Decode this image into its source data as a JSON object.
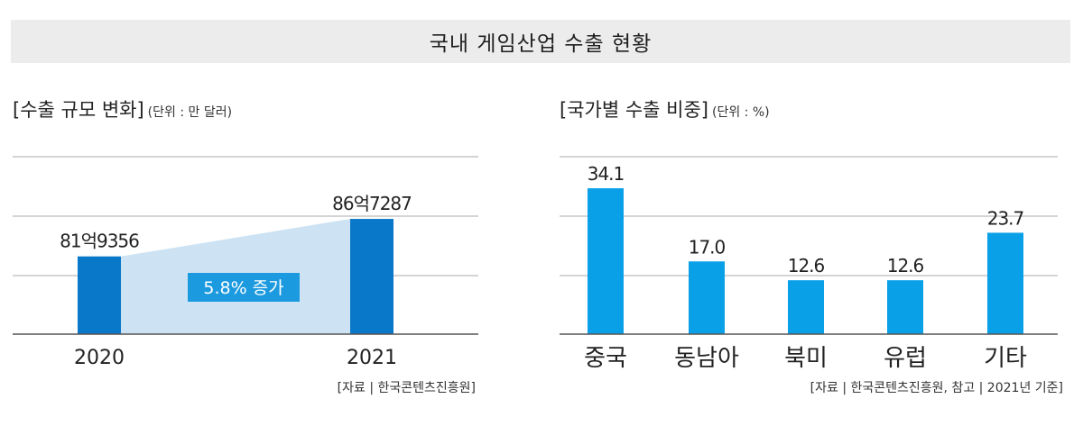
{
  "title": "국내 게임산업 수출 현황",
  "charts": {
    "left": {
      "subtitle": "[수출 규모 변화]",
      "unit": "(단위 : 만 달러)",
      "source": "[자료 | 한국콘텐츠진흥원]",
      "growth_label": "5.8% 증가"
    },
    "right": {
      "subtitle": "[국가별 수출 비중]",
      "unit": "(단위 : %)",
      "source": "[자료 | 한국콘텐츠진흥원, 참고 | 2021년 기준]"
    }
  },
  "chart_data": [
    {
      "type": "bar",
      "title": "[수출 규모 변화]",
      "unit": "(단위 : 만 달러)",
      "categories": [
        "2020",
        "2021"
      ],
      "values": [
        819356,
        867287
      ],
      "value_labels": [
        "81억9356",
        "86억7287"
      ],
      "annotation": "5.8% 증가",
      "colors": {
        "bar": "#0a78c8",
        "band": "#cde3f3",
        "annotation_bg": "#1c9ae0"
      }
    },
    {
      "type": "bar",
      "title": "[국가별 수출 비중]",
      "unit": "(단위 : %)",
      "categories": [
        "중국",
        "동남아",
        "북미",
        "유럽",
        "기타"
      ],
      "values": [
        34.1,
        17.0,
        12.6,
        12.6,
        23.7
      ],
      "value_labels": [
        "34.1",
        "17.0",
        "12.6",
        "12.6",
        "23.7"
      ],
      "colors": {
        "bar": "#0aa0e8"
      }
    }
  ]
}
